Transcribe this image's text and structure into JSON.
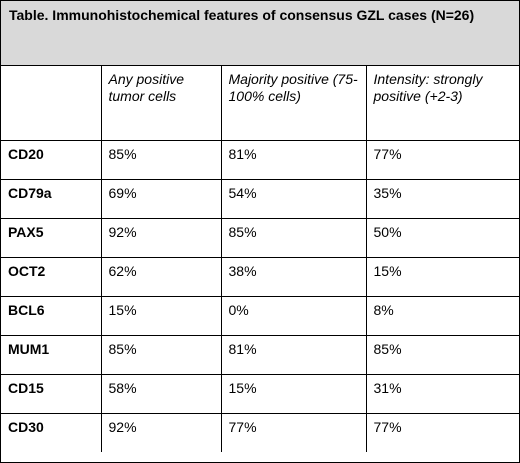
{
  "table": {
    "caption": "Table.  Immunohistochemical features of consensus GZL cases (N=26)",
    "headers": [
      "",
      "Any positive tumor cells",
      "Majority positive (75-100% cells)",
      "Intensity: strongly positive (+2-3)"
    ],
    "rows": [
      {
        "marker": "CD20",
        "any": "85%",
        "majority": "81%",
        "intensity": "77%"
      },
      {
        "marker": "CD79a",
        "any": "69%",
        "majority": "54%",
        "intensity": "35%"
      },
      {
        "marker": "PAX5",
        "any": "92%",
        "majority": "85%",
        "intensity": "50%"
      },
      {
        "marker": "OCT2",
        "any": "62%",
        "majority": "38%",
        "intensity": "15%"
      },
      {
        "marker": "BCL6",
        "any": "15%",
        "majority": "0%",
        "intensity": "8%"
      },
      {
        "marker": "MUM1",
        "any": "85%",
        "majority": "81%",
        "intensity": "85%"
      },
      {
        "marker": "CD15",
        "any": "58%",
        "majority": "15%",
        "intensity": "31%"
      },
      {
        "marker": "CD30",
        "any": "92%",
        "majority": "77%",
        "intensity": "77%"
      }
    ],
    "colors": {
      "caption_background": "#d9d9d9",
      "border": "#000000",
      "text": "#000000"
    }
  }
}
